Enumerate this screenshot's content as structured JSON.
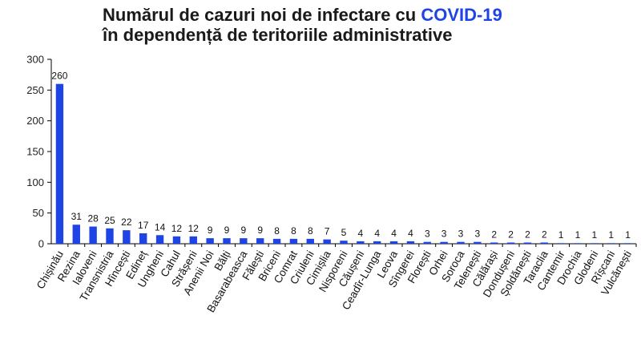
{
  "chart_data": {
    "type": "bar",
    "title_line1": "Numărul de cazuri noi de infectare cu ",
    "title_accent": "COVID-19",
    "title_line2": "în dependență de teritoriile administrative",
    "ylim": [
      0,
      300
    ],
    "yticks": [
      0,
      50,
      100,
      150,
      200,
      250,
      300
    ],
    "grid": false,
    "bar_color": "#1f44e6",
    "title_accent_color": "#1f44e6",
    "categories": [
      "Chișinău",
      "Rezina",
      "Ialoveni",
      "Transnistria",
      "Hîncești",
      "Edineț",
      "Ungheni",
      "Cahul",
      "Strășeni",
      "Anenii Noi",
      "Bălți",
      "Basarabeasca",
      "Fălești",
      "Briceni",
      "Comrat",
      "Criuleni",
      "Cimișlia",
      "Nisporeni",
      "Căușeni",
      "Ceadîr-Lunga",
      "Leova",
      "Sîngerei",
      "Florești",
      "Orhei",
      "Soroca",
      "Telenești",
      "Călărași",
      "Dondușeni",
      "Șoldănești",
      "Taraclia",
      "Cantemir",
      "Drochia",
      "Glodeni",
      "Rîșcani",
      "Vulcănești"
    ],
    "values": [
      260,
      31,
      28,
      25,
      22,
      17,
      14,
      12,
      12,
      9,
      9,
      9,
      9,
      8,
      8,
      8,
      7,
      5,
      4,
      4,
      4,
      4,
      3,
      3,
      3,
      3,
      2,
      2,
      2,
      2,
      1,
      1,
      1,
      1,
      1
    ]
  }
}
